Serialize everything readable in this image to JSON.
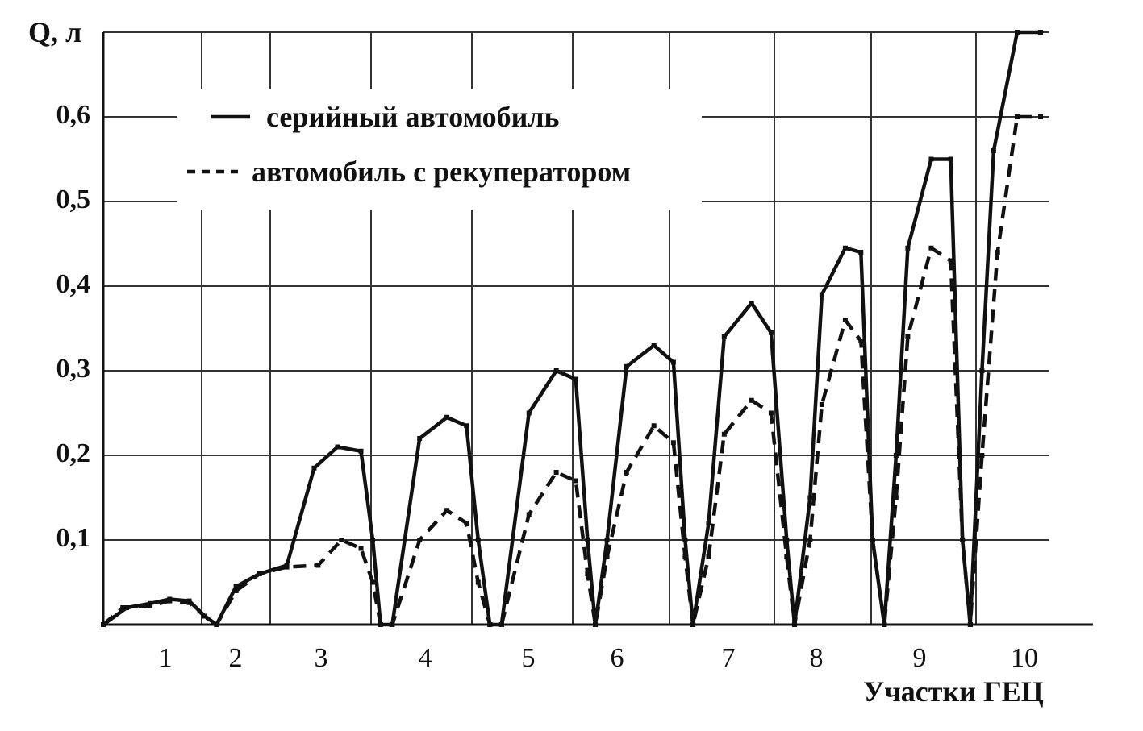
{
  "chart_data": {
    "type": "line",
    "ylabel": "Q, л",
    "xlabel": "Участки ГЕЦ",
    "ylim": [
      0,
      0.7
    ],
    "yticks": [
      "0,1",
      "0,2",
      "0,3",
      "0,4",
      "0,5",
      "0,6"
    ],
    "categories": [
      "1",
      "2",
      "3",
      "4",
      "5",
      "6",
      "7",
      "8",
      "9",
      "10"
    ],
    "grid": true,
    "legend_position": "top-left",
    "series": [
      {
        "name": "серийный автомобиль",
        "style": "solid",
        "points": [
          [
            0,
            0
          ],
          [
            0.3,
            0.02
          ],
          [
            0.6,
            0.025
          ],
          [
            0.85,
            0.03
          ],
          [
            1.1,
            0.028
          ],
          [
            1.3,
            0.01
          ],
          [
            1.45,
            0
          ],
          [
            1.7,
            0.045
          ],
          [
            2.0,
            0.06
          ],
          [
            2.35,
            0.07
          ],
          [
            2.7,
            0.185
          ],
          [
            3.0,
            0.21
          ],
          [
            3.3,
            0.205
          ],
          [
            3.45,
            0.1
          ],
          [
            3.55,
            0
          ],
          [
            3.7,
            0
          ],
          [
            4.05,
            0.22
          ],
          [
            4.4,
            0.245
          ],
          [
            4.65,
            0.235
          ],
          [
            4.8,
            0.1
          ],
          [
            4.95,
            0
          ],
          [
            5.1,
            0
          ],
          [
            5.45,
            0.25
          ],
          [
            5.8,
            0.3
          ],
          [
            6.05,
            0.29
          ],
          [
            6.2,
            0.1
          ],
          [
            6.3,
            0
          ],
          [
            6.45,
            0.1
          ],
          [
            6.7,
            0.305
          ],
          [
            7.05,
            0.33
          ],
          [
            7.3,
            0.31
          ],
          [
            7.45,
            0.1
          ],
          [
            7.55,
            0
          ],
          [
            7.75,
            0.12
          ],
          [
            7.95,
            0.34
          ],
          [
            8.3,
            0.38
          ],
          [
            8.55,
            0.345
          ],
          [
            8.75,
            0.1
          ],
          [
            8.85,
            0
          ],
          [
            9.05,
            0.15
          ],
          [
            9.2,
            0.39
          ],
          [
            9.5,
            0.445
          ],
          [
            9.7,
            0.44
          ],
          [
            9.85,
            0.1
          ],
          [
            10.0,
            0
          ],
          [
            10.15,
            0.2
          ],
          [
            10.3,
            0.445
          ],
          [
            10.6,
            0.55
          ],
          [
            10.85,
            0.55
          ],
          [
            11.0,
            0.1
          ],
          [
            11.1,
            0
          ],
          [
            11.25,
            0.3
          ],
          [
            11.4,
            0.56
          ],
          [
            11.7,
            0.7
          ],
          [
            12.0,
            0.7
          ]
        ]
      },
      {
        "name": "автомобиль с рекуператором",
        "style": "dashed",
        "points": [
          [
            0,
            0
          ],
          [
            0.25,
            0.02
          ],
          [
            0.6,
            0.022
          ],
          [
            0.85,
            0.028
          ],
          [
            1.1,
            0.026
          ],
          [
            1.3,
            0.01
          ],
          [
            1.45,
            0
          ],
          [
            1.7,
            0.04
          ],
          [
            2.0,
            0.06
          ],
          [
            2.35,
            0.068
          ],
          [
            2.75,
            0.07
          ],
          [
            3.05,
            0.1
          ],
          [
            3.3,
            0.09
          ],
          [
            3.45,
            0.05
          ],
          [
            3.55,
            0
          ],
          [
            3.7,
            0
          ],
          [
            4.05,
            0.1
          ],
          [
            4.4,
            0.135
          ],
          [
            4.65,
            0.12
          ],
          [
            4.8,
            0.05
          ],
          [
            4.95,
            0
          ],
          [
            5.1,
            0
          ],
          [
            5.45,
            0.13
          ],
          [
            5.8,
            0.18
          ],
          [
            6.05,
            0.17
          ],
          [
            6.2,
            0.06
          ],
          [
            6.3,
            0
          ],
          [
            6.45,
            0.08
          ],
          [
            6.7,
            0.18
          ],
          [
            7.05,
            0.235
          ],
          [
            7.3,
            0.215
          ],
          [
            7.45,
            0.08
          ],
          [
            7.55,
            0
          ],
          [
            7.75,
            0.08
          ],
          [
            7.95,
            0.225
          ],
          [
            8.3,
            0.265
          ],
          [
            8.55,
            0.25
          ],
          [
            8.75,
            0.08
          ],
          [
            8.85,
            0
          ],
          [
            9.05,
            0.1
          ],
          [
            9.2,
            0.26
          ],
          [
            9.5,
            0.36
          ],
          [
            9.7,
            0.335
          ],
          [
            9.85,
            0.1
          ],
          [
            10.0,
            0
          ],
          [
            10.15,
            0.15
          ],
          [
            10.3,
            0.34
          ],
          [
            10.6,
            0.445
          ],
          [
            10.85,
            0.43
          ],
          [
            11.0,
            0.1
          ],
          [
            11.1,
            0
          ],
          [
            11.25,
            0.2
          ],
          [
            11.45,
            0.44
          ],
          [
            11.7,
            0.6
          ],
          [
            12.0,
            0.6
          ]
        ]
      }
    ]
  }
}
